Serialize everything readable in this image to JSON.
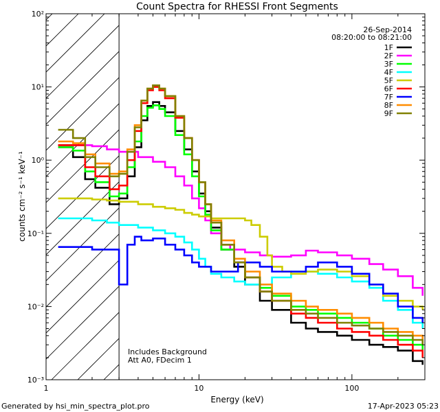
{
  "chart_data": {
    "type": "line",
    "title": "Count Spectra for RHESSI Front Segments",
    "xlabel": "Energy (keV)",
    "ylabel": "counts cm⁻² s⁻¹ keV⁻¹",
    "xscale": "log",
    "yscale": "log",
    "xlim": [
      1,
      300
    ],
    "ylim": [
      0.001,
      100
    ],
    "x_ticks": [
      "1",
      "10",
      "100"
    ],
    "y_ticks": [
      "10⁻³",
      "10⁻²",
      "10⁻¹",
      "10⁰",
      "10¹",
      "10²"
    ],
    "hatch_region_kev": [
      1,
      3
    ],
    "date": "26-Sep-2014",
    "time_range": "08:20:00 to 08:21:00",
    "annotation_lines": [
      "Includes Background",
      "Att A0, FDecim 1"
    ],
    "footer_left": "Generated by hsi_min_spectra_plot.pro",
    "footer_right": "17-Apr-2023 05:23",
    "series": [
      {
        "name": "1F",
        "color": "#000000",
        "points": [
          [
            1.2,
            1.6
          ],
          [
            1.5,
            1.1
          ],
          [
            1.8,
            0.55
          ],
          [
            2.1,
            0.42
          ],
          [
            2.6,
            0.25
          ],
          [
            3.0,
            0.3
          ],
          [
            3.4,
            0.6
          ],
          [
            3.8,
            1.5
          ],
          [
            4.2,
            3.5
          ],
          [
            4.6,
            5.5
          ],
          [
            5.0,
            6.2
          ],
          [
            5.5,
            5.5
          ],
          [
            6.0,
            4.5
          ],
          [
            7.0,
            2.5
          ],
          [
            8.0,
            1.4
          ],
          [
            9.0,
            0.7
          ],
          [
            10,
            0.35
          ],
          [
            11,
            0.2
          ],
          [
            12,
            0.12
          ],
          [
            14,
            0.06
          ],
          [
            17,
            0.035
          ],
          [
            20,
            0.02
          ],
          [
            25,
            0.012
          ],
          [
            30,
            0.009
          ],
          [
            40,
            0.006
          ],
          [
            50,
            0.005
          ],
          [
            60,
            0.0045
          ],
          [
            80,
            0.004
          ],
          [
            100,
            0.0035
          ],
          [
            130,
            0.003
          ],
          [
            160,
            0.0028
          ],
          [
            200,
            0.0025
          ],
          [
            250,
            0.0018
          ],
          [
            290,
            0.0016
          ]
        ]
      },
      {
        "name": "2F",
        "color": "#ff00ff",
        "points": [
          [
            1.2,
            1.5
          ],
          [
            1.5,
            1.6
          ],
          [
            2.0,
            1.55
          ],
          [
            2.5,
            1.4
          ],
          [
            3.0,
            1.3
          ],
          [
            4.0,
            1.1
          ],
          [
            5.0,
            0.95
          ],
          [
            6.0,
            0.8
          ],
          [
            7.0,
            0.6
          ],
          [
            8.0,
            0.45
          ],
          [
            9.0,
            0.3
          ],
          [
            10,
            0.22
          ],
          [
            11,
            0.15
          ],
          [
            12,
            0.1
          ],
          [
            14,
            0.07
          ],
          [
            16,
            0.06
          ],
          [
            20,
            0.055
          ],
          [
            25,
            0.05
          ],
          [
            30,
            0.048
          ],
          [
            40,
            0.05
          ],
          [
            50,
            0.058
          ],
          [
            60,
            0.055
          ],
          [
            80,
            0.05
          ],
          [
            100,
            0.045
          ],
          [
            130,
            0.038
          ],
          [
            160,
            0.032
          ],
          [
            200,
            0.026
          ],
          [
            250,
            0.018
          ],
          [
            290,
            0.014
          ]
        ]
      },
      {
        "name": "3F",
        "color": "#00ff00",
        "points": [
          [
            1.2,
            1.5
          ],
          [
            1.5,
            1.35
          ],
          [
            1.8,
            0.7
          ],
          [
            2.1,
            0.5
          ],
          [
            2.6,
            0.32
          ],
          [
            3.0,
            0.35
          ],
          [
            3.4,
            0.8
          ],
          [
            3.8,
            1.8
          ],
          [
            4.2,
            4.0
          ],
          [
            4.6,
            5.2
          ],
          [
            5.0,
            5.6
          ],
          [
            5.5,
            5.0
          ],
          [
            6.0,
            4.0
          ],
          [
            7.0,
            2.2
          ],
          [
            8.0,
            1.2
          ],
          [
            9.0,
            0.6
          ],
          [
            10,
            0.32
          ],
          [
            11,
            0.18
          ],
          [
            12,
            0.11
          ],
          [
            14,
            0.06
          ],
          [
            17,
            0.04
          ],
          [
            20,
            0.025
          ],
          [
            25,
            0.018
          ],
          [
            30,
            0.014
          ],
          [
            40,
            0.01
          ],
          [
            50,
            0.009
          ],
          [
            60,
            0.008
          ],
          [
            80,
            0.007
          ],
          [
            100,
            0.006
          ],
          [
            130,
            0.005
          ],
          [
            160,
            0.004
          ],
          [
            200,
            0.0035
          ],
          [
            250,
            0.003
          ],
          [
            290,
            0.0025
          ]
        ]
      },
      {
        "name": "4F",
        "color": "#00ffff",
        "points": [
          [
            1.2,
            0.16
          ],
          [
            1.5,
            0.16
          ],
          [
            2.0,
            0.15
          ],
          [
            2.5,
            0.14
          ],
          [
            3.0,
            0.13
          ],
          [
            4.0,
            0.12
          ],
          [
            5.0,
            0.11
          ],
          [
            6.0,
            0.1
          ],
          [
            7.0,
            0.09
          ],
          [
            8.0,
            0.075
          ],
          [
            9.0,
            0.06
          ],
          [
            10,
            0.045
          ],
          [
            11,
            0.035
          ],
          [
            12,
            0.028
          ],
          [
            14,
            0.025
          ],
          [
            17,
            0.022
          ],
          [
            20,
            0.02
          ],
          [
            25,
            0.02
          ],
          [
            30,
            0.025
          ],
          [
            40,
            0.03
          ],
          [
            50,
            0.03
          ],
          [
            60,
            0.028
          ],
          [
            80,
            0.025
          ],
          [
            100,
            0.022
          ],
          [
            130,
            0.018
          ],
          [
            160,
            0.012
          ],
          [
            200,
            0.009
          ],
          [
            250,
            0.006
          ],
          [
            290,
            0.005
          ]
        ]
      },
      {
        "name": "5F",
        "color": "#cccc00",
        "points": [
          [
            1.2,
            0.3
          ],
          [
            1.5,
            0.3
          ],
          [
            2.0,
            0.29
          ],
          [
            2.5,
            0.28
          ],
          [
            3.0,
            0.27
          ],
          [
            4.0,
            0.25
          ],
          [
            5.0,
            0.23
          ],
          [
            6.0,
            0.22
          ],
          [
            7.0,
            0.21
          ],
          [
            8.0,
            0.19
          ],
          [
            9.0,
            0.18
          ],
          [
            10,
            0.17
          ],
          [
            12,
            0.16
          ],
          [
            15,
            0.16
          ],
          [
            18,
            0.16
          ],
          [
            20,
            0.15
          ],
          [
            22,
            0.13
          ],
          [
            25,
            0.09
          ],
          [
            28,
            0.05
          ],
          [
            30,
            0.035
          ],
          [
            35,
            0.03
          ],
          [
            40,
            0.028
          ],
          [
            50,
            0.03
          ],
          [
            60,
            0.032
          ],
          [
            80,
            0.03
          ],
          [
            100,
            0.026
          ],
          [
            130,
            0.02
          ],
          [
            160,
            0.014
          ],
          [
            200,
            0.012
          ],
          [
            250,
            0.01
          ],
          [
            290,
            0.009
          ]
        ]
      },
      {
        "name": "6F",
        "color": "#ff0000",
        "points": [
          [
            1.2,
            1.6
          ],
          [
            1.5,
            1.6
          ],
          [
            1.8,
            0.8
          ],
          [
            2.1,
            0.6
          ],
          [
            2.6,
            0.4
          ],
          [
            3.0,
            0.45
          ],
          [
            3.4,
            1.0
          ],
          [
            3.8,
            2.5
          ],
          [
            4.2,
            6.0
          ],
          [
            4.6,
            9.0
          ],
          [
            5.0,
            10.0
          ],
          [
            5.5,
            9.0
          ],
          [
            6.0,
            7.0
          ],
          [
            7.0,
            3.8
          ],
          [
            8.0,
            2.0
          ],
          [
            9.0,
            1.0
          ],
          [
            10,
            0.5
          ],
          [
            11,
            0.25
          ],
          [
            12,
            0.14
          ],
          [
            14,
            0.07
          ],
          [
            17,
            0.04
          ],
          [
            20,
            0.025
          ],
          [
            25,
            0.016
          ],
          [
            30,
            0.012
          ],
          [
            40,
            0.008
          ],
          [
            50,
            0.007
          ],
          [
            60,
            0.006
          ],
          [
            80,
            0.005
          ],
          [
            100,
            0.0045
          ],
          [
            130,
            0.004
          ],
          [
            160,
            0.0035
          ],
          [
            200,
            0.003
          ],
          [
            250,
            0.0025
          ],
          [
            290,
            0.002
          ]
        ]
      },
      {
        "name": "7F",
        "color": "#0000ff",
        "points": [
          [
            1.2,
            0.065
          ],
          [
            1.5,
            0.065
          ],
          [
            2.0,
            0.06
          ],
          [
            2.5,
            0.06
          ],
          [
            3.0,
            0.02
          ],
          [
            3.4,
            0.07
          ],
          [
            3.8,
            0.09
          ],
          [
            4.2,
            0.08
          ],
          [
            5.0,
            0.085
          ],
          [
            6.0,
            0.07
          ],
          [
            7.0,
            0.06
          ],
          [
            8.0,
            0.05
          ],
          [
            9.0,
            0.04
          ],
          [
            10,
            0.035
          ],
          [
            12,
            0.03
          ],
          [
            15,
            0.03
          ],
          [
            18,
            0.04
          ],
          [
            20,
            0.04
          ],
          [
            25,
            0.035
          ],
          [
            30,
            0.03
          ],
          [
            40,
            0.03
          ],
          [
            50,
            0.035
          ],
          [
            60,
            0.04
          ],
          [
            80,
            0.035
          ],
          [
            100,
            0.028
          ],
          [
            130,
            0.02
          ],
          [
            160,
            0.015
          ],
          [
            200,
            0.01
          ],
          [
            250,
            0.007
          ],
          [
            290,
            0.006
          ]
        ]
      },
      {
        "name": "8F",
        "color": "#ff8c00",
        "points": [
          [
            1.2,
            1.8
          ],
          [
            1.5,
            1.7
          ],
          [
            1.8,
            1.2
          ],
          [
            2.1,
            0.9
          ],
          [
            2.6,
            0.65
          ],
          [
            3.0,
            0.7
          ],
          [
            3.4,
            1.4
          ],
          [
            3.8,
            3.0
          ],
          [
            4.2,
            6.5
          ],
          [
            4.6,
            9.5
          ],
          [
            5.0,
            10.5
          ],
          [
            5.5,
            9.5
          ],
          [
            6.0,
            7.5
          ],
          [
            7.0,
            4.0
          ],
          [
            8.0,
            2.0
          ],
          [
            9.0,
            1.0
          ],
          [
            10,
            0.5
          ],
          [
            11,
            0.25
          ],
          [
            12,
            0.15
          ],
          [
            14,
            0.08
          ],
          [
            17,
            0.045
          ],
          [
            20,
            0.03
          ],
          [
            25,
            0.02
          ],
          [
            30,
            0.015
          ],
          [
            40,
            0.012
          ],
          [
            50,
            0.01
          ],
          [
            60,
            0.009
          ],
          [
            80,
            0.008
          ],
          [
            100,
            0.007
          ],
          [
            130,
            0.006
          ],
          [
            160,
            0.005
          ],
          [
            200,
            0.0045
          ],
          [
            250,
            0.004
          ],
          [
            290,
            0.0035
          ]
        ]
      },
      {
        "name": "9F",
        "color": "#808000",
        "points": [
          [
            1.2,
            2.6
          ],
          [
            1.5,
            2.0
          ],
          [
            1.8,
            1.1
          ],
          [
            2.1,
            0.8
          ],
          [
            2.6,
            0.6
          ],
          [
            3.0,
            0.65
          ],
          [
            3.4,
            1.3
          ],
          [
            3.8,
            2.8
          ],
          [
            4.2,
            6.5
          ],
          [
            4.6,
            9.5
          ],
          [
            5.0,
            10.5
          ],
          [
            5.5,
            9.5
          ],
          [
            6.0,
            7.5
          ],
          [
            7.0,
            4.0
          ],
          [
            8.0,
            2.0
          ],
          [
            9.0,
            1.0
          ],
          [
            10,
            0.5
          ],
          [
            11,
            0.25
          ],
          [
            12,
            0.14
          ],
          [
            14,
            0.07
          ],
          [
            17,
            0.04
          ],
          [
            20,
            0.025
          ],
          [
            25,
            0.016
          ],
          [
            30,
            0.012
          ],
          [
            40,
            0.009
          ],
          [
            50,
            0.008
          ],
          [
            60,
            0.007
          ],
          [
            80,
            0.006
          ],
          [
            100,
            0.0055
          ],
          [
            130,
            0.005
          ],
          [
            160,
            0.0045
          ],
          [
            200,
            0.004
          ],
          [
            250,
            0.0035
          ],
          [
            290,
            0.003
          ]
        ]
      }
    ]
  }
}
